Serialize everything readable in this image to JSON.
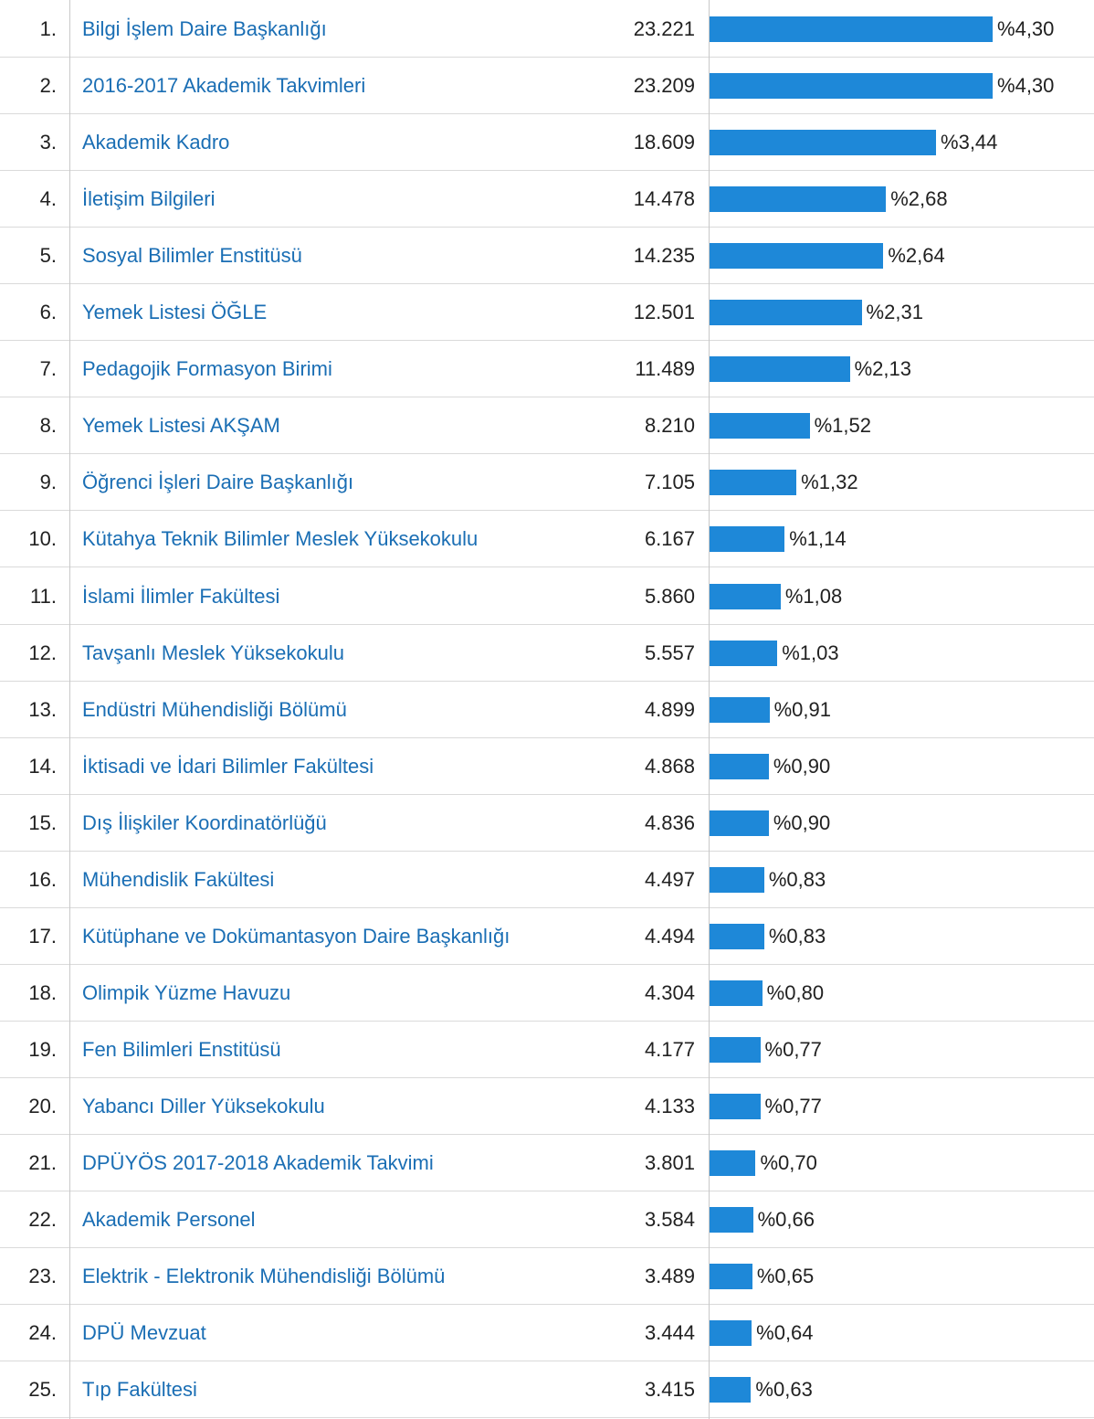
{
  "table": {
    "rows": [
      {
        "rank": "1.",
        "title": "Bilgi İşlem Daire Başkanlığı",
        "count": "23.221",
        "share": 4.3,
        "share_label": "%4,30"
      },
      {
        "rank": "2.",
        "title": "2016-2017 Akademik Takvimleri",
        "count": "23.209",
        "share": 4.3,
        "share_label": "%4,30"
      },
      {
        "rank": "3.",
        "title": "Akademik Kadro",
        "count": "18.609",
        "share": 3.44,
        "share_label": "%3,44"
      },
      {
        "rank": "4.",
        "title": "İletişim Bilgileri",
        "count": "14.478",
        "share": 2.68,
        "share_label": "%2,68"
      },
      {
        "rank": "5.",
        "title": "Sosyal Bilimler Enstitüsü",
        "count": "14.235",
        "share": 2.64,
        "share_label": "%2,64"
      },
      {
        "rank": "6.",
        "title": "Yemek Listesi ÖĞLE",
        "count": "12.501",
        "share": 2.31,
        "share_label": "%2,31"
      },
      {
        "rank": "7.",
        "title": "Pedagojik Formasyon Birimi",
        "count": "11.489",
        "share": 2.13,
        "share_label": "%2,13"
      },
      {
        "rank": "8.",
        "title": "Yemek Listesi AKŞAM",
        "count": "8.210",
        "share": 1.52,
        "share_label": "%1,52"
      },
      {
        "rank": "9.",
        "title": "Öğrenci İşleri Daire Başkanlığı",
        "count": "7.105",
        "share": 1.32,
        "share_label": "%1,32"
      },
      {
        "rank": "10.",
        "title": "Kütahya Teknik Bilimler Meslek Yüksekokulu",
        "count": "6.167",
        "share": 1.14,
        "share_label": "%1,14"
      },
      {
        "rank": "11.",
        "title": "İslami İlimler Fakültesi",
        "count": "5.860",
        "share": 1.08,
        "share_label": "%1,08"
      },
      {
        "rank": "12.",
        "title": "Tavşanlı Meslek Yüksekokulu",
        "count": "5.557",
        "share": 1.03,
        "share_label": "%1,03"
      },
      {
        "rank": "13.",
        "title": "Endüstri Mühendisliği Bölümü",
        "count": "4.899",
        "share": 0.91,
        "share_label": "%0,91"
      },
      {
        "rank": "14.",
        "title": "İktisadi ve İdari Bilimler Fakültesi",
        "count": "4.868",
        "share": 0.9,
        "share_label": "%0,90"
      },
      {
        "rank": "15.",
        "title": "Dış İlişkiler Koordinatörlüğü",
        "count": "4.836",
        "share": 0.9,
        "share_label": "%0,90"
      },
      {
        "rank": "16.",
        "title": "Mühendislik Fakültesi",
        "count": "4.497",
        "share": 0.83,
        "share_label": "%0,83"
      },
      {
        "rank": "17.",
        "title": "Kütüphane ve Dokümantasyon Daire Başkanlığı",
        "count": "4.494",
        "share": 0.83,
        "share_label": "%0,83"
      },
      {
        "rank": "18.",
        "title": "Olimpik Yüzme Havuzu",
        "count": "4.304",
        "share": 0.8,
        "share_label": "%0,80"
      },
      {
        "rank": "19.",
        "title": "Fen Bilimleri Enstitüsü",
        "count": "4.177",
        "share": 0.77,
        "share_label": "%0,77"
      },
      {
        "rank": "20.",
        "title": "Yabancı Diller Yüksekokulu",
        "count": "4.133",
        "share": 0.77,
        "share_label": "%0,77"
      },
      {
        "rank": "21.",
        "title": "DPÜYÖS 2017-2018 Akademik Takvimi",
        "count": "3.801",
        "share": 0.7,
        "share_label": "%0,70"
      },
      {
        "rank": "22.",
        "title": "Akademik Personel",
        "count": "3.584",
        "share": 0.66,
        "share_label": "%0,66"
      },
      {
        "rank": "23.",
        "title": "Elektrik - Elektronik Mühendisliği Bölümü",
        "count": "3.489",
        "share": 0.65,
        "share_label": "%0,65"
      },
      {
        "rank": "24.",
        "title": "DPÜ Mevzuat",
        "count": "3.444",
        "share": 0.64,
        "share_label": "%0,64"
      },
      {
        "rank": "25.",
        "title": "Tıp Fakültesi",
        "count": "3.415",
        "share": 0.63,
        "share_label": "%0,63"
      }
    ]
  }
}
